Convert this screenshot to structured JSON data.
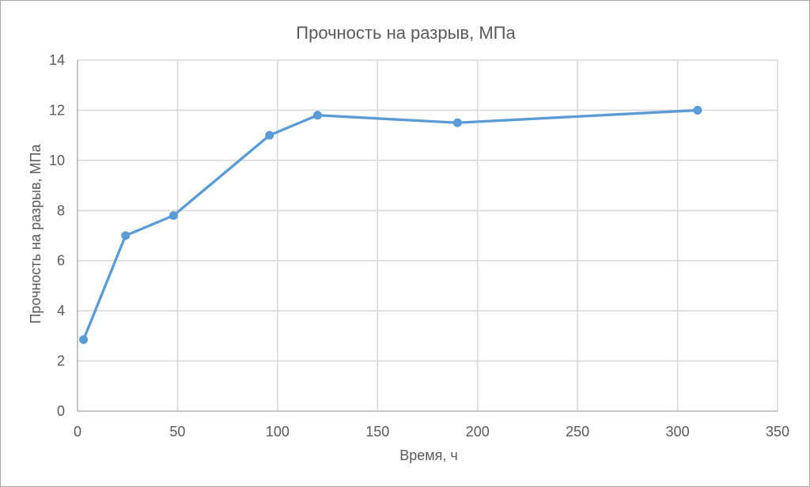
{
  "frame": {
    "background": "#FFFFFF",
    "border_color": "#A6A6A6"
  },
  "chart_data": {
    "type": "line",
    "title": "Прочность на разрыв, МПа",
    "xlabel": "Время, ч",
    "ylabel": "Прочность на разрыв, МПа",
    "x": [
      3,
      24,
      48,
      96,
      120,
      190,
      310
    ],
    "y": [
      2.85,
      7,
      7.8,
      11,
      11.8,
      11.5,
      12
    ],
    "xlim": [
      0,
      350
    ],
    "ylim": [
      0,
      14
    ],
    "xticks": [
      0,
      50,
      100,
      150,
      200,
      250,
      300,
      350
    ],
    "yticks": [
      0,
      2,
      4,
      6,
      8,
      10,
      12,
      14
    ],
    "grid": true,
    "legend": false,
    "marker": "circle",
    "series_color": "#5B9BD5",
    "gridline_color": "#D9D9D9",
    "axis_line_color": "#BFBFBF",
    "text_color": "#595959"
  }
}
